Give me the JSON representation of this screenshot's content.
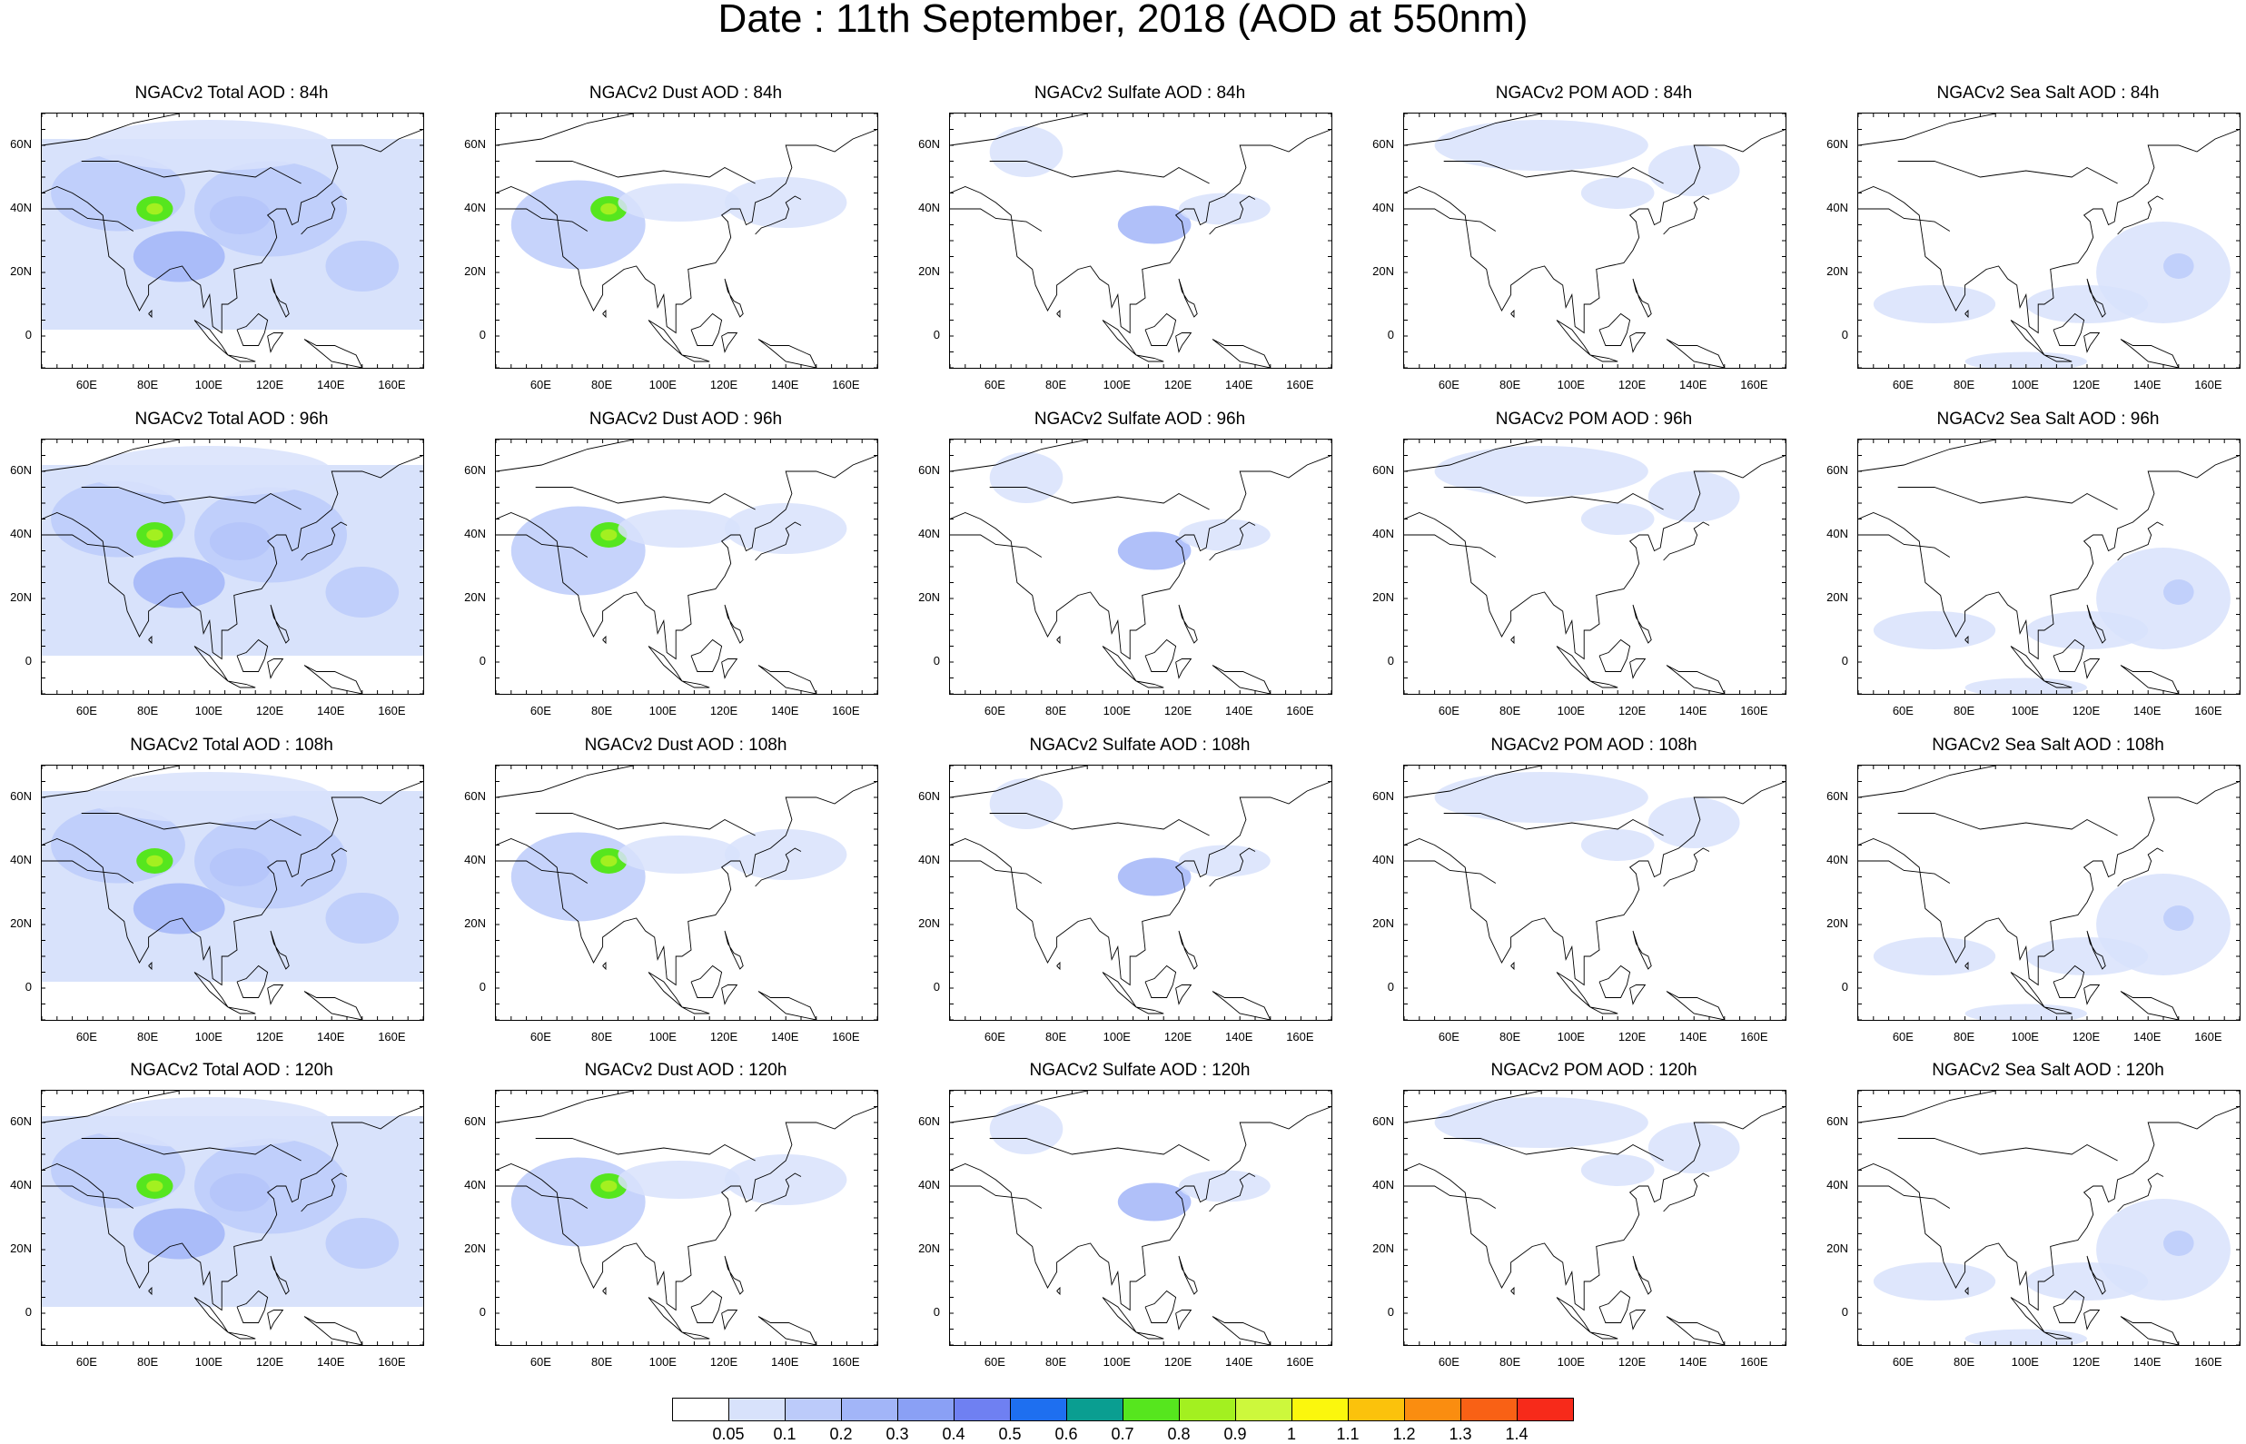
{
  "title": "Date : 11th September, 2018 (AOD at 550nm)",
  "columns": [
    {
      "id": "total",
      "name": "Total AOD"
    },
    {
      "id": "dust",
      "name": "Dust AOD"
    },
    {
      "id": "sulfate",
      "name": "Sulfate AOD"
    },
    {
      "id": "pom",
      "name": "POM AOD"
    },
    {
      "id": "seasalt",
      "name": "Sea Salt AOD"
    }
  ],
  "panel_titles": [
    [
      "NGACv2 Total AOD : 84h",
      "NGACv2 Dust AOD : 84h",
      "NGACv2 Sulfate AOD : 84h",
      "NGACv2 POM AOD : 84h",
      "NGACv2 Sea Salt AOD : 84h"
    ],
    [
      "NGACv2 Total AOD : 96h",
      "NGACv2 Dust AOD : 96h",
      "NGACv2 Sulfate AOD : 96h",
      "NGACv2 POM AOD : 96h",
      "NGACv2 Sea Salt AOD : 96h"
    ],
    [
      "NGACv2 Total AOD : 108h",
      "NGACv2 Dust AOD : 108h",
      "NGACv2 Sulfate AOD : 108h",
      "NGACv2 POM AOD : 108h",
      "NGACv2 Sea Salt AOD : 108h"
    ],
    [
      "NGACv2 Total AOD : 120h",
      "NGACv2 Dust AOD : 120h",
      "NGACv2 Sulfate AOD : 120h",
      "NGACv2 POM AOD : 120h",
      "NGACv2 Sea Salt  AOD : 120h"
    ]
  ],
  "map_extent": {
    "lon": [
      45,
      170
    ],
    "lat": [
      -10,
      70
    ]
  },
  "x_ticks": [
    "60E",
    "80E",
    "100E",
    "120E",
    "140E",
    "160E"
  ],
  "x_tick_values": [
    60,
    80,
    100,
    120,
    140,
    160
  ],
  "y_ticks": [
    "60N",
    "40N",
    "20N",
    "0"
  ],
  "y_tick_values": [
    60,
    40,
    20,
    0
  ],
  "colorbar": {
    "labels": [
      "0.05",
      "0.1",
      "0.2",
      "0.3",
      "0.4",
      "0.5",
      "0.6",
      "0.7",
      "0.8",
      "0.9",
      "1",
      "1.1",
      "1.2",
      "1.3",
      "1.4"
    ],
    "colors": [
      "#ffffff",
      "#d8e2fb",
      "#bccbfa",
      "#a2b5f8",
      "#8aa0f5",
      "#6f80f2",
      "#1e6ff0",
      "#0a9e91",
      "#56e61e",
      "#a3f020",
      "#cdf83c",
      "#fbf70d",
      "#fbc20c",
      "#fa8d10",
      "#f96115",
      "#f72a1a"
    ]
  },
  "plumes": {
    "total": [
      {
        "lon": 70,
        "lat": 45,
        "rx": 22,
        "ry": 12,
        "c": 2
      },
      {
        "lon": 82,
        "lat": 40,
        "rx": 6,
        "ry": 4,
        "c": 8
      },
      {
        "lon": 110,
        "lat": 38,
        "rx": 10,
        "ry": 6,
        "c": 4
      },
      {
        "lon": 120,
        "lat": 40,
        "rx": 25,
        "ry": 15,
        "c": 2
      },
      {
        "lon": 90,
        "lat": 25,
        "rx": 15,
        "ry": 8,
        "c": 3
      },
      {
        "lon": 150,
        "lat": 22,
        "rx": 12,
        "ry": 8,
        "c": 2
      },
      {
        "lon": 100,
        "lat": 60,
        "rx": 40,
        "ry": 8,
        "c": 1
      }
    ],
    "dust": [
      {
        "lon": 72,
        "lat": 35,
        "rx": 22,
        "ry": 14,
        "c": 2
      },
      {
        "lon": 82,
        "lat": 40,
        "rx": 6,
        "ry": 4,
        "c": 8
      },
      {
        "lon": 105,
        "lat": 42,
        "rx": 20,
        "ry": 6,
        "c": 1
      },
      {
        "lon": 140,
        "lat": 42,
        "rx": 20,
        "ry": 8,
        "c": 1
      }
    ],
    "sulfate": [
      {
        "lon": 112,
        "lat": 35,
        "rx": 12,
        "ry": 6,
        "c": 3
      },
      {
        "lon": 70,
        "lat": 58,
        "rx": 12,
        "ry": 8,
        "c": 1
      },
      {
        "lon": 135,
        "lat": 40,
        "rx": 15,
        "ry": 5,
        "c": 1
      }
    ],
    "pom": [
      {
        "lon": 90,
        "lat": 60,
        "rx": 35,
        "ry": 8,
        "c": 1
      },
      {
        "lon": 140,
        "lat": 52,
        "rx": 15,
        "ry": 8,
        "c": 1
      },
      {
        "lon": 115,
        "lat": 45,
        "rx": 12,
        "ry": 5,
        "c": 1
      }
    ],
    "seasalt": [
      {
        "lon": 145,
        "lat": 20,
        "rx": 22,
        "ry": 16,
        "c": 1
      },
      {
        "lon": 150,
        "lat": 22,
        "rx": 5,
        "ry": 4,
        "c": 2
      },
      {
        "lon": 120,
        "lat": 10,
        "rx": 20,
        "ry": 6,
        "c": 1
      },
      {
        "lon": 70,
        "lat": 10,
        "rx": 20,
        "ry": 6,
        "c": 1
      },
      {
        "lon": 100,
        "lat": -8,
        "rx": 20,
        "ry": 3,
        "c": 1
      }
    ]
  }
}
